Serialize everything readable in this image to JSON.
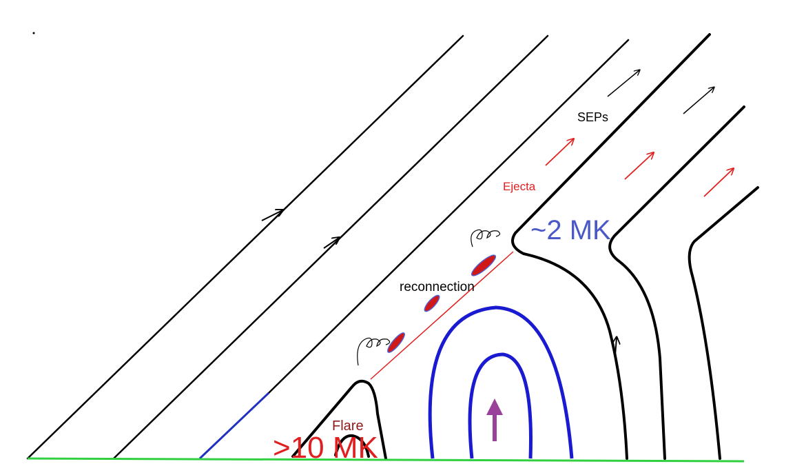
{
  "labels": {
    "seps": "SEPs",
    "ejecta": "Ejecta",
    "cool_temp": "~2 MK",
    "reconnection": "reconnection",
    "flare": "Flare",
    "hot_temp": ">10 MK"
  }
}
